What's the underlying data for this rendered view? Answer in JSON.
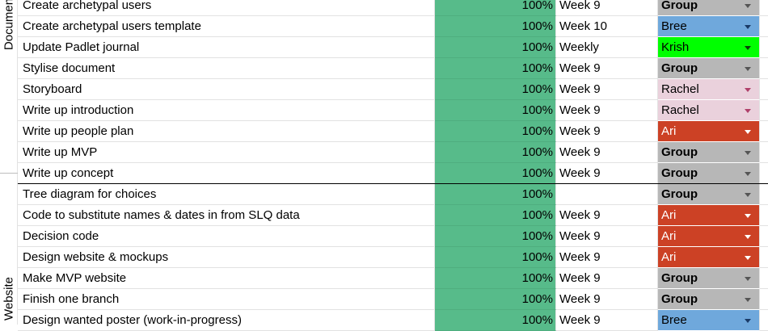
{
  "sections": [
    {
      "label": "Documen"
    },
    {
      "label": "Website"
    }
  ],
  "colors": {
    "progress_green": "#57bb8a",
    "Bree": "#6fa8dc",
    "Krish": "#00ff00",
    "Group": "#b7b7b7",
    "Rachel": "#ead1dc",
    "Ari": "#cc4125"
  },
  "rows": [
    {
      "task": "Create archetypal users",
      "percent": "100%",
      "week": "Week 9",
      "person": "Group",
      "person_key": "Group"
    },
    {
      "task": "Create archetypal users template",
      "percent": "100%",
      "week": "Week 10",
      "person": "Bree",
      "person_key": "Bree"
    },
    {
      "task": "Update Padlet journal",
      "percent": "100%",
      "week": "Weekly",
      "person": "Krish",
      "person_key": "Krish"
    },
    {
      "task": "Stylise document",
      "percent": "100%",
      "week": "Week 9",
      "person": "Group",
      "person_key": "Group"
    },
    {
      "task": "Storyboard",
      "percent": "100%",
      "week": "Week 9",
      "person": "Rachel",
      "person_key": "Rachel"
    },
    {
      "task": "Write up introduction",
      "percent": "100%",
      "week": "Week 9",
      "person": "Rachel",
      "person_key": "Rachel"
    },
    {
      "task": "Write up people plan",
      "percent": "100%",
      "week": "Week 9",
      "person": "Ari",
      "person_key": "Ari"
    },
    {
      "task": "Write up MVP",
      "percent": "100%",
      "week": "Week 9",
      "person": "Group",
      "person_key": "Group"
    },
    {
      "task": "Write up concept",
      "percent": "100%",
      "week": "Week 9",
      "person": "Group",
      "person_key": "Group"
    },
    {
      "task": "Tree diagram for choices",
      "percent": "100%",
      "week": "",
      "person": "Group",
      "person_key": "Group"
    },
    {
      "task": "Code to substitute names & dates in from SLQ data",
      "percent": "100%",
      "week": "Week 9",
      "person": "Ari",
      "person_key": "Ari"
    },
    {
      "task": "Decision code",
      "percent": "100%",
      "week": "Week 9",
      "person": "Ari",
      "person_key": "Ari"
    },
    {
      "task": "Design website & mockups",
      "percent": "100%",
      "week": "Week 9",
      "person": "Ari",
      "person_key": "Ari"
    },
    {
      "task": "Make MVP website",
      "percent": "100%",
      "week": "Week 9",
      "person": "Group",
      "person_key": "Group"
    },
    {
      "task": "Finish one branch",
      "percent": "100%",
      "week": "Week 9",
      "person": "Group",
      "person_key": "Group"
    },
    {
      "task": "Design wanted poster (work-in-progress)",
      "percent": "100%",
      "week": "Week 9",
      "person": "Bree",
      "person_key": "Bree"
    }
  ]
}
